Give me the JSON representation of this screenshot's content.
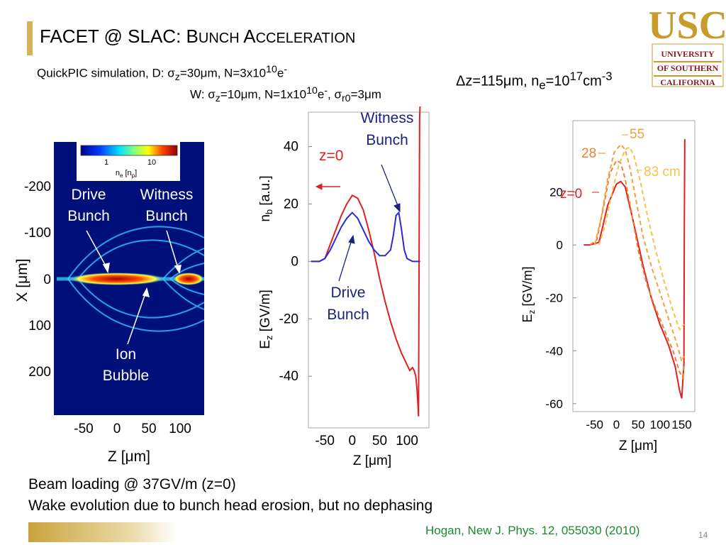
{
  "slide": {
    "title_prefix": "FACET @ SLAC: ",
    "title_main": "Bunch Acceleration",
    "page_number": "14",
    "citation": "Hogan, New J. Phys. 12, 055030 (2010)"
  },
  "logo": {
    "letters": "USC",
    "line1": "UNIVERSITY",
    "line2": "OF SOUTHERN",
    "line3": "CALIFORNIA",
    "color_gold": "#c89b2c",
    "color_cardinal": "#8b1a1a"
  },
  "sim_params": {
    "line1_lead": "QuickPIC simulation, D: ",
    "sigma": "σ",
    "z_sub": "z",
    "line1_rest": "=30μm, N=3x10",
    "exp10": "10",
    "e_minus": "e",
    "minus": "-",
    "line2_lead": "W: ",
    "line2_rest": "=10μm, N=1x10",
    "comma": ", ",
    "r0_sub": "r0",
    "line2_end": "=3μm"
  },
  "plasma_params": {
    "delta": "Δ",
    "text_a": "z=115μm, n",
    "e_sub": "e",
    "text_b": "=10",
    "exp": "17",
    "text_c": "cm",
    "exp2": "-3"
  },
  "panel_density": {
    "colorbar_ticks": [
      "1",
      "10"
    ],
    "colorbar_label": "n",
    "colorbar_label_sub1": "e",
    "colorbar_label_mid": " [n",
    "colorbar_label_sub2": "p",
    "colorbar_label_end": "]",
    "y_ticks": [
      "-200",
      "-100",
      "0",
      "100",
      "200"
    ],
    "y_label": "X [μm]",
    "x_ticks": [
      "-50",
      "0",
      "50",
      "100"
    ],
    "x_label": "Z [μm]",
    "drive_label": [
      "Drive",
      "Bunch"
    ],
    "witness_label": [
      "Witness",
      "Bunch"
    ],
    "ion_label": [
      "Ion",
      "Bubble"
    ]
  },
  "chart_data": [
    {
      "type": "line",
      "x_ticks": [
        "-50",
        "0",
        "50",
        "100"
      ],
      "y_ticks": [
        "40",
        "20",
        "0",
        "-20",
        "-40"
      ],
      "xlabel": "Z [μm]",
      "ylabel_ez": "E",
      "ylabel_ez_sub": "z",
      "ylabel_ez_unit": " [GV/m]",
      "ylabel_nb": "n",
      "ylabel_nb_sub": "b",
      "ylabel_nb_unit": " [a.u.]",
      "xlim": [
        -80,
        140
      ],
      "ylim": [
        -58,
        52
      ],
      "annotations": {
        "z0": "z=0",
        "witness": [
          "Witness",
          "Bunch"
        ],
        "drive": [
          "Drive",
          "Bunch"
        ]
      },
      "series": [
        {
          "color": "#e02020",
          "x": [
            -75,
            -60,
            -50,
            -40,
            -30,
            -20,
            -10,
            0,
            10,
            20,
            30,
            40,
            50,
            60,
            70,
            80,
            90,
            100,
            105,
            110,
            113,
            116,
            118,
            120,
            121,
            122,
            123,
            124
          ],
          "y": [
            0,
            0,
            1,
            6,
            11,
            16,
            20,
            23,
            22,
            18,
            11,
            3,
            -6,
            -14,
            -21,
            -27,
            -32,
            -36,
            -38,
            -37,
            -38,
            -40,
            -44,
            -50,
            -54,
            0,
            50,
            55
          ]
        },
        {
          "color": "#2a2adb",
          "x": [
            -75,
            -60,
            -50,
            -40,
            -30,
            -20,
            -10,
            0,
            10,
            20,
            30,
            40,
            50,
            60,
            70,
            75,
            80,
            85,
            90,
            95,
            100,
            110,
            120,
            124
          ],
          "y": [
            0,
            0,
            1,
            4,
            8,
            12,
            15,
            17,
            15,
            11,
            7,
            4,
            2,
            2,
            4,
            9,
            16,
            17,
            11,
            4,
            1,
            0,
            0,
            0
          ]
        }
      ]
    },
    {
      "type": "line",
      "x_ticks": [
        "-50",
        "0",
        "50",
        "100",
        "150"
      ],
      "y_ticks": [
        "20",
        "0",
        "-20",
        "-40",
        "-60"
      ],
      "xlabel": "Z [μm]",
      "ylabel": "E",
      "ylabel_sub": "z",
      "ylabel_unit": " [GV/m]",
      "xlim": [
        -100,
        180
      ],
      "ylim": [
        -63,
        47
      ],
      "annotations": {
        "z0": "z=0",
        "z28": "28",
        "z55": "55",
        "z83": "83 cm"
      },
      "series": [
        {
          "name": "z=0",
          "color": "#e02020",
          "dashed": false,
          "x": [
            -75,
            -60,
            -40,
            -20,
            0,
            10,
            20,
            40,
            60,
            80,
            100,
            120,
            135,
            145,
            150,
            155,
            156,
            157
          ],
          "y": [
            0,
            0,
            1,
            15,
            23,
            24,
            22,
            8,
            -7,
            -20,
            -30,
            -38,
            -46,
            -55,
            -58,
            -45,
            10,
            40
          ]
        },
        {
          "name": "28",
          "color": "#f08030",
          "dashed": true,
          "x": [
            -60,
            -45,
            -30,
            -15,
            0,
            10,
            20,
            35,
            50,
            70,
            90,
            110,
            130,
            145,
            152,
            156
          ],
          "y": [
            0,
            2,
            14,
            27,
            32,
            31,
            25,
            12,
            -2,
            -15,
            -24,
            -32,
            -40,
            -48,
            -50,
            -45
          ]
        },
        {
          "name": "55",
          "color": "#f5a040",
          "dashed": true,
          "x": [
            -50,
            -35,
            -20,
            -5,
            10,
            20,
            30,
            45,
            60,
            80,
            100,
            120,
            140,
            150,
            155
          ],
          "y": [
            0,
            10,
            25,
            35,
            38,
            36,
            30,
            17,
            4,
            -8,
            -18,
            -28,
            -38,
            -44,
            -42
          ]
        },
        {
          "name": "83 cm",
          "color": "#f7c24a",
          "dashed": true,
          "x": [
            -40,
            -25,
            -10,
            5,
            20,
            30,
            40,
            55,
            70,
            90,
            110,
            130,
            145,
            155
          ],
          "y": [
            0,
            8,
            20,
            30,
            36,
            37,
            34,
            24,
            12,
            -2,
            -14,
            -25,
            -32,
            -30
          ]
        }
      ]
    }
  ],
  "bottom": {
    "line1": "Beam loading @ 37GV/m (z=0)",
    "line2": "Wake evolution due to bunch head erosion, but no dephasing"
  }
}
